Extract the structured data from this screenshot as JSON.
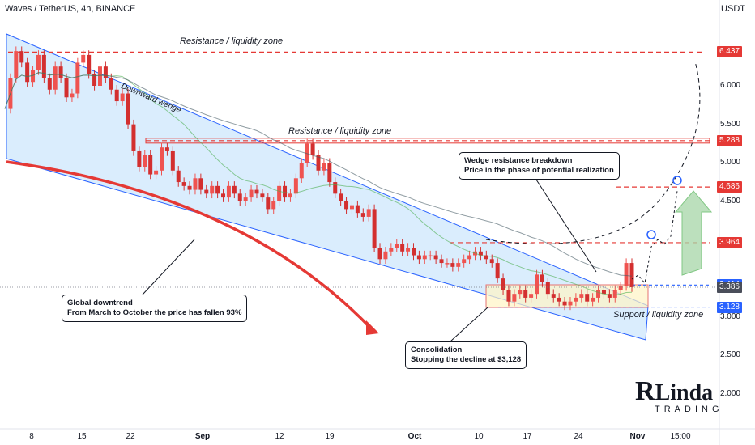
{
  "header": {
    "title": "Waves / TetherUS, 4h, BINANCE",
    "currency": "USDT"
  },
  "annotations": {
    "resistance_top": "Resistance / liquidity zone",
    "resistance_mid": "Resistance / liquidity zone",
    "support": "Support / liquidity zone",
    "wedge": "Downward wedge",
    "note_downtrend": [
      "Global downtrend",
      "From March to October the price has fallen 93%"
    ],
    "note_consolidation": [
      "Consolidation",
      "Stopping the decline at $3,128"
    ],
    "note_breakdown": [
      "Wedge resistance breakdown",
      "Price in the phase of potential realization"
    ]
  },
  "logo": {
    "text": "Linda",
    "sub": "TRADING"
  },
  "colors": {
    "red": "#e53935",
    "blue": "#2962ff",
    "candle_up": "#ef5350",
    "candle_down": "#d32f2f",
    "wedge_fill": "#bbdefb",
    "box_fill": "#fff3c4",
    "arrow_green": "#a5d6a7"
  },
  "chart_data": {
    "type": "line",
    "symbol": "WAVESUSDT",
    "timeframe": "4h",
    "xticks": [
      "8",
      "15",
      "22",
      "Sep",
      "12",
      "19",
      "Oct",
      "10",
      "17",
      "24",
      "Nov",
      "15:00"
    ],
    "yticks": [
      "6.000",
      "5.500",
      "5.000",
      "4.500",
      "3.000",
      "2.500",
      "2.000"
    ],
    "ylim": [
      1.8,
      6.8
    ],
    "price_labels": [
      {
        "value": "6.437",
        "style": "red"
      },
      {
        "value": "5.288",
        "style": "red"
      },
      {
        "value": "4.686",
        "style": "red"
      },
      {
        "value": "3.964",
        "style": "red"
      },
      {
        "value": "3.414",
        "style": "blue"
      },
      {
        "value": "3.386",
        "style": "gray"
      },
      {
        "value": "3.128",
        "style": "blue"
      }
    ],
    "levels": [
      6.437,
      5.288,
      4.686,
      3.964,
      3.414,
      3.128
    ],
    "series": [
      {
        "values": [
          5.7,
          6.1,
          6.45,
          6.3,
          6.05,
          6.2,
          6.4,
          6.1,
          5.95,
          6.25,
          6.1,
          5.85,
          5.9,
          6.3,
          6.4,
          6.15,
          6.0,
          6.25,
          6.1,
          5.95,
          5.8,
          5.9,
          5.5,
          5.15,
          4.95,
          5.1,
          4.85,
          4.9,
          5.2,
          5.15,
          4.9,
          4.75,
          4.7,
          4.65,
          4.8,
          4.65,
          4.6,
          4.7,
          4.6,
          4.55,
          4.7,
          4.6,
          4.5,
          4.55,
          4.65,
          4.6,
          4.55,
          4.4,
          4.5,
          4.7,
          4.55,
          4.6,
          4.8,
          5.0,
          5.25,
          5.1,
          4.9,
          5.0,
          4.75,
          4.6,
          4.5,
          4.4,
          4.45,
          4.35,
          4.3,
          4.4,
          3.9,
          3.75,
          3.85,
          3.9,
          3.95,
          3.85,
          3.9,
          3.8,
          3.75,
          3.8,
          3.8,
          3.75,
          3.7,
          3.7,
          3.65,
          3.7,
          3.75,
          3.8,
          3.85,
          3.8,
          3.75,
          3.7,
          3.5,
          3.35,
          3.2,
          3.3,
          3.35,
          3.25,
          3.3,
          3.55,
          3.45,
          3.3,
          3.25,
          3.2,
          3.15,
          3.2,
          3.25,
          3.3,
          3.2,
          3.25,
          3.35,
          3.3,
          3.25,
          3.35,
          3.4,
          3.7,
          3.386
        ]
      }
    ]
  }
}
